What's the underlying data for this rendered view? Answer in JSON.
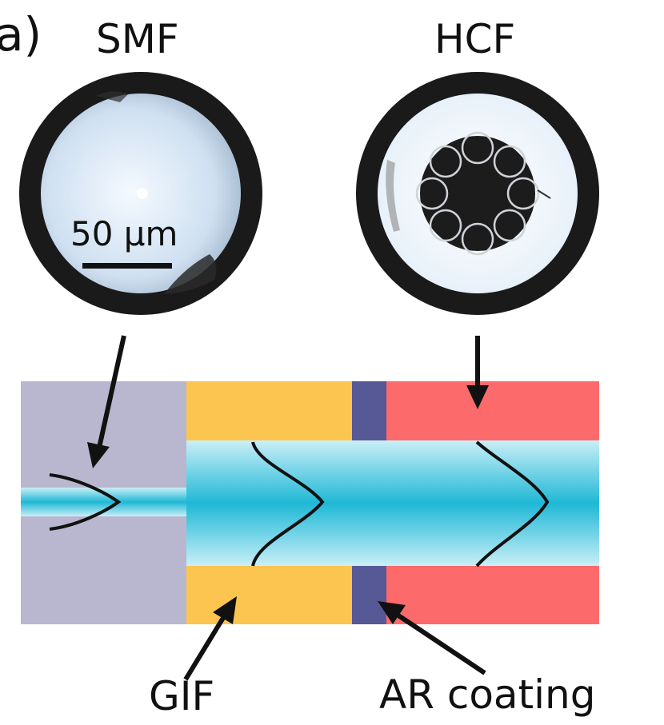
{
  "panel_label": "a)",
  "smf_label": "SMF",
  "hcf_label": "HCF",
  "scale_bar_label": "50 μm",
  "gif_label": "GIF",
  "ar_label": "AR coating",
  "colors": {
    "smf_cladding": "#b9b7cf",
    "gif": "#fcc54f",
    "ar_coating": "#575896",
    "hcf": "#fc6a6c",
    "core_light": "#c8eef6",
    "core_mid": "#22bcd9",
    "fiber_jacket": "#151515",
    "arrow": "#111111"
  },
  "icons": {
    "smf_micrograph": "smf-cross-section-micrograph",
    "hcf_micrograph": "hcf-cross-section-micrograph"
  }
}
